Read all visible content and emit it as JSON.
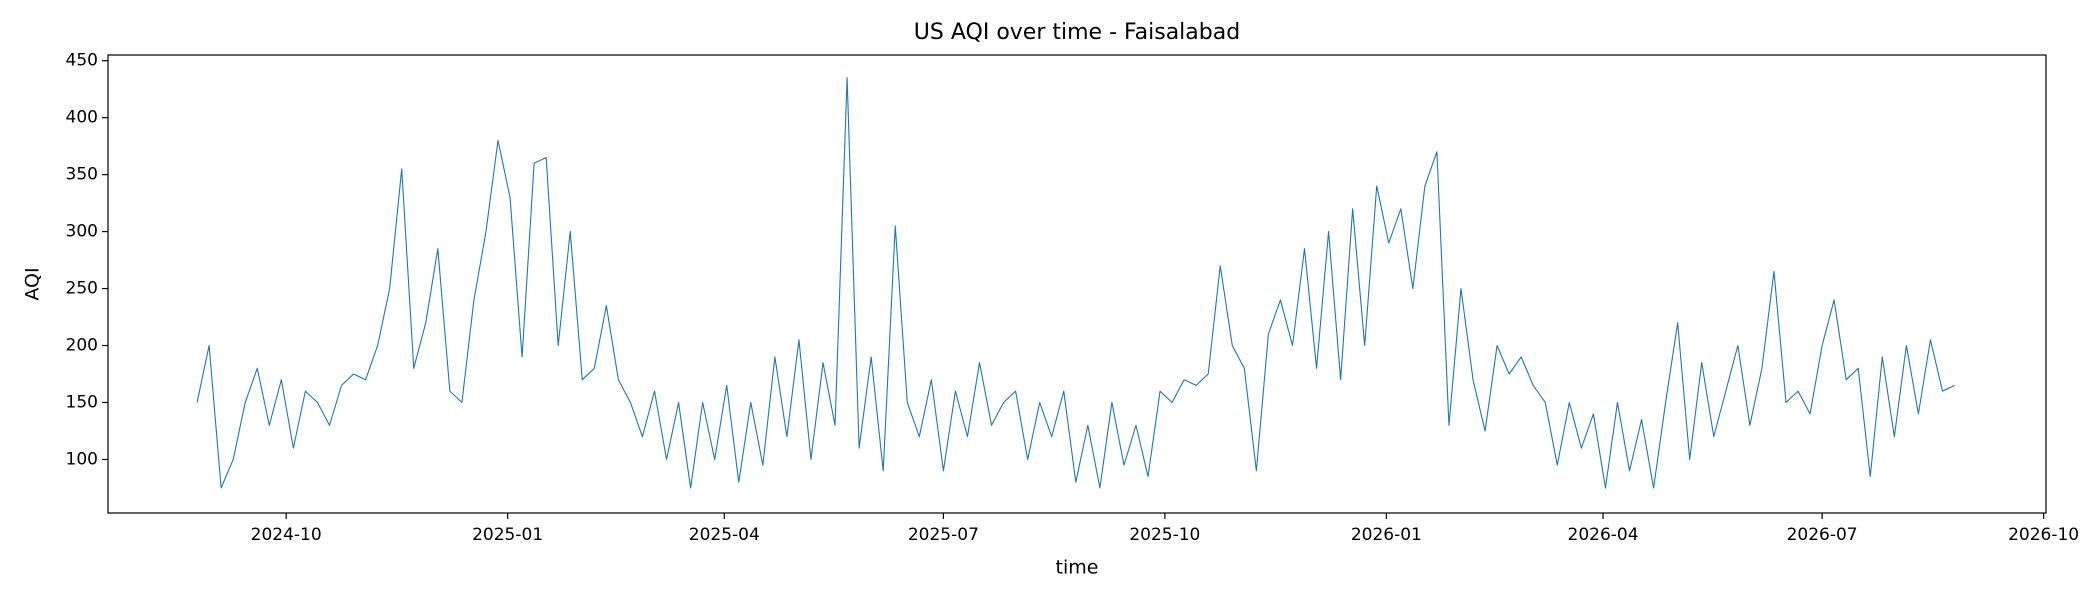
{
  "chart_data": {
    "type": "line",
    "title": "US AQI over time - Faisalabad",
    "x_label": "time",
    "y_label": "AQI",
    "x": [
      "2024-08-25",
      "2024-08-30",
      "2024-09-04",
      "2024-09-09",
      "2024-09-14",
      "2024-09-19",
      "2024-09-24",
      "2024-09-29",
      "2024-10-04",
      "2024-10-09",
      "2024-10-14",
      "2024-10-19",
      "2024-10-24",
      "2024-10-29",
      "2024-11-03",
      "2024-11-08",
      "2024-11-13",
      "2024-11-18",
      "2024-11-23",
      "2024-11-28",
      "2024-12-03",
      "2024-12-08",
      "2024-12-13",
      "2024-12-18",
      "2024-12-23",
      "2024-12-28",
      "2025-01-02",
      "2025-01-07",
      "2025-01-12",
      "2025-01-17",
      "2025-01-22",
      "2025-01-27",
      "2025-02-01",
      "2025-02-06",
      "2025-02-11",
      "2025-02-16",
      "2025-02-21",
      "2025-02-26",
      "2025-03-03",
      "2025-03-08",
      "2025-03-13",
      "2025-03-18",
      "2025-03-23",
      "2025-03-28",
      "2025-04-02",
      "2025-04-07",
      "2025-04-12",
      "2025-04-17",
      "2025-04-22",
      "2025-04-27",
      "2025-05-02",
      "2025-05-07",
      "2025-05-12",
      "2025-05-17",
      "2025-05-22",
      "2025-05-27",
      "2025-06-01",
      "2025-06-06",
      "2025-06-11",
      "2025-06-16",
      "2025-06-21",
      "2025-06-26",
      "2025-07-01",
      "2025-07-06",
      "2025-07-11",
      "2025-07-16",
      "2025-07-21",
      "2025-07-26",
      "2025-07-31",
      "2025-08-05",
      "2025-08-10",
      "2025-08-15",
      "2025-08-20",
      "2025-08-25",
      "2025-08-30",
      "2025-09-04",
      "2025-09-09",
      "2025-09-14",
      "2025-09-19",
      "2025-09-24",
      "2025-09-29",
      "2025-10-04",
      "2025-10-09",
      "2025-10-14",
      "2025-10-19",
      "2025-10-24",
      "2025-10-29",
      "2025-11-03",
      "2025-11-08",
      "2025-11-13",
      "2025-11-18",
      "2025-11-23",
      "2025-11-28",
      "2025-12-03",
      "2025-12-08",
      "2025-12-13",
      "2025-12-18",
      "2025-12-23",
      "2025-12-28",
      "2026-01-02",
      "2026-01-07",
      "2026-01-12",
      "2026-01-17",
      "2026-01-22",
      "2026-01-27",
      "2026-02-01",
      "2026-02-06",
      "2026-02-11",
      "2026-02-16",
      "2026-02-21",
      "2026-02-26",
      "2026-03-03",
      "2026-03-08",
      "2026-03-13",
      "2026-03-18",
      "2026-03-23",
      "2026-03-28",
      "2026-04-02",
      "2026-04-07",
      "2026-04-12",
      "2026-04-17",
      "2026-04-22",
      "2026-04-27",
      "2026-05-02",
      "2026-05-07",
      "2026-05-12",
      "2026-05-17",
      "2026-05-22",
      "2026-05-27",
      "2026-06-01",
      "2026-06-06",
      "2026-06-11",
      "2026-06-16",
      "2026-06-21",
      "2026-06-26",
      "2026-07-01",
      "2026-07-06",
      "2026-07-11",
      "2026-07-16",
      "2026-07-21",
      "2026-07-26",
      "2026-07-31",
      "2026-08-05",
      "2026-08-10",
      "2026-08-15",
      "2026-08-20",
      "2026-08-25"
    ],
    "series": [
      {
        "color": "#1f77b4",
        "values": [
          150,
          200,
          75,
          100,
          150,
          180,
          130,
          170,
          110,
          160,
          150,
          130,
          165,
          175,
          170,
          200,
          250,
          355,
          180,
          220,
          285,
          160,
          150,
          240,
          300,
          380,
          330,
          190,
          360,
          365,
          200,
          300,
          170,
          180,
          235,
          170,
          150,
          120,
          160,
          100,
          150,
          75,
          150,
          100,
          165,
          80,
          150,
          95,
          190,
          120,
          205,
          100,
          185,
          130,
          435,
          110,
          190,
          90,
          305,
          150,
          120,
          170,
          90,
          160,
          120,
          185,
          130,
          150,
          160,
          100,
          150,
          120,
          160,
          80,
          130,
          75,
          150,
          95,
          130,
          85,
          160,
          150,
          170,
          165,
          175,
          270,
          200,
          180,
          90,
          210,
          240,
          200,
          285,
          180,
          300,
          170,
          320,
          200,
          340,
          290,
          320,
          250,
          340,
          370,
          130,
          250,
          170,
          125,
          200,
          175,
          190,
          165,
          150,
          95,
          150,
          110,
          140,
          75,
          150,
          90,
          135,
          75,
          150,
          220,
          100,
          185,
          120,
          160,
          200,
          130,
          180,
          265,
          150,
          160,
          140,
          200,
          240,
          170,
          180,
          85,
          190,
          120,
          200,
          140,
          205,
          160,
          165
        ]
      }
    ],
    "xlim": [
      "2024-07-19",
      "2026-10-02"
    ],
    "xticks": [
      "2024-10",
      "2025-01",
      "2025-04",
      "2025-07",
      "2025-10",
      "2026-01",
      "2026-04",
      "2026-07",
      "2026-10"
    ],
    "ylim": [
      53,
      455
    ],
    "yticks": [
      100,
      150,
      200,
      250,
      300,
      350,
      400,
      450
    ]
  }
}
